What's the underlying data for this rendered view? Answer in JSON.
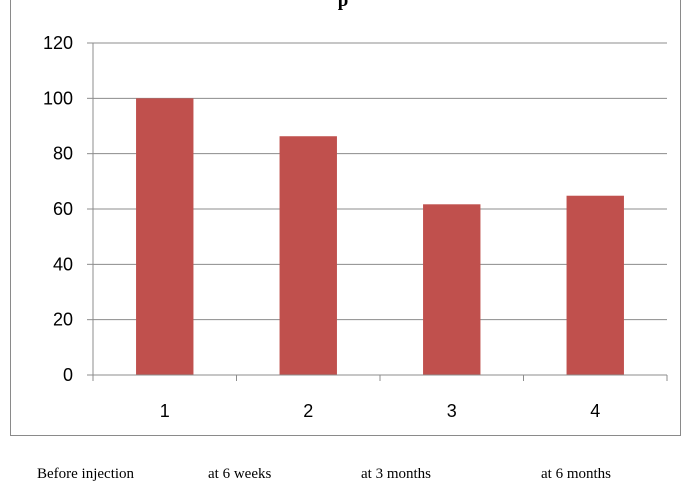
{
  "chart_data": {
    "type": "bar",
    "title": "p",
    "categories": [
      "1",
      "2",
      "3",
      "4"
    ],
    "values": [
      100,
      86.3,
      61.7,
      64.8
    ],
    "ylim": [
      0,
      120
    ],
    "yticks": [
      0,
      20,
      40,
      60,
      80,
      100,
      120
    ],
    "grid": true,
    "bar_color": "#c0504d",
    "xlabel": "",
    "ylabel": ""
  },
  "captions": [
    "Before injection",
    "at 6 weeks",
    "at 3 months",
    "at 6 months"
  ]
}
